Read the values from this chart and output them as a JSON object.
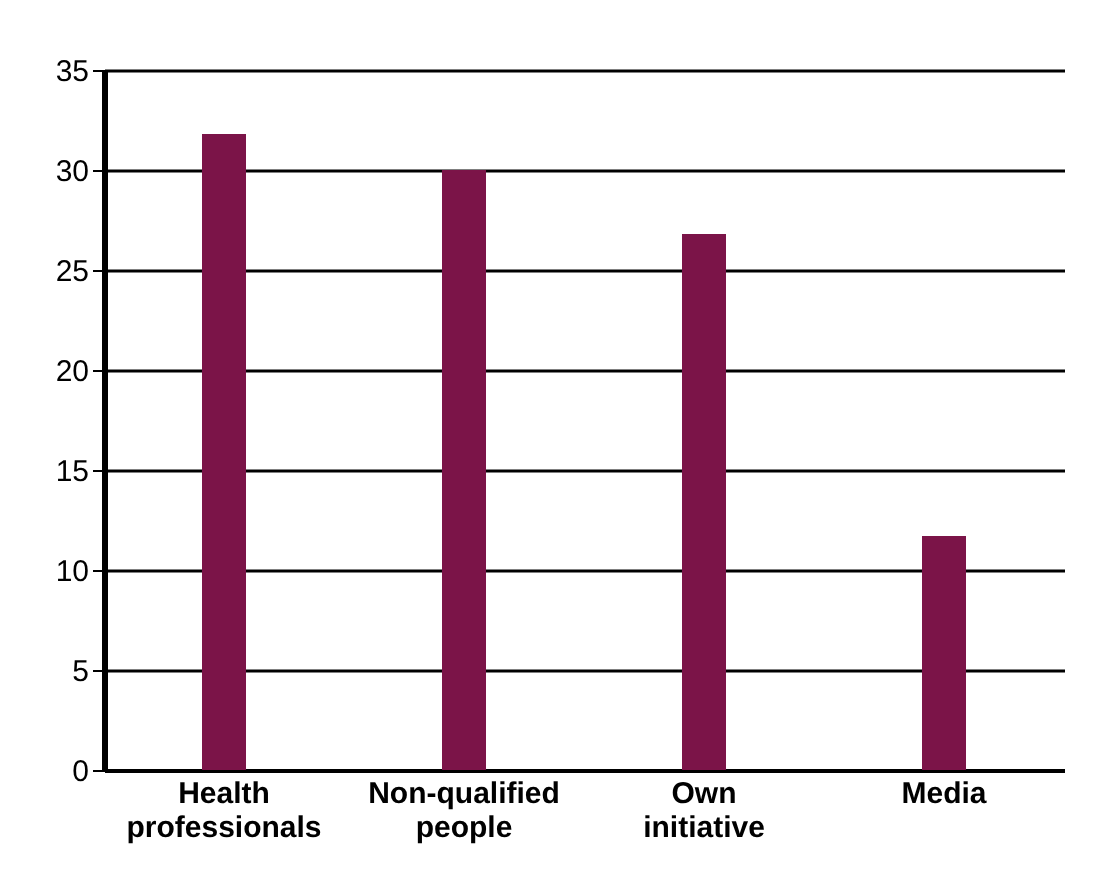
{
  "chart_data": {
    "type": "bar",
    "categories": [
      "Health professionals",
      "Non-qualified people",
      "Own initiative",
      "Media"
    ],
    "values": [
      31.8,
      30,
      26.8,
      11.7
    ],
    "color": "#7b1448",
    "ylim": [
      0,
      35
    ],
    "yticks": [
      0,
      5,
      10,
      15,
      20,
      25,
      30,
      35
    ],
    "grid": "y"
  }
}
